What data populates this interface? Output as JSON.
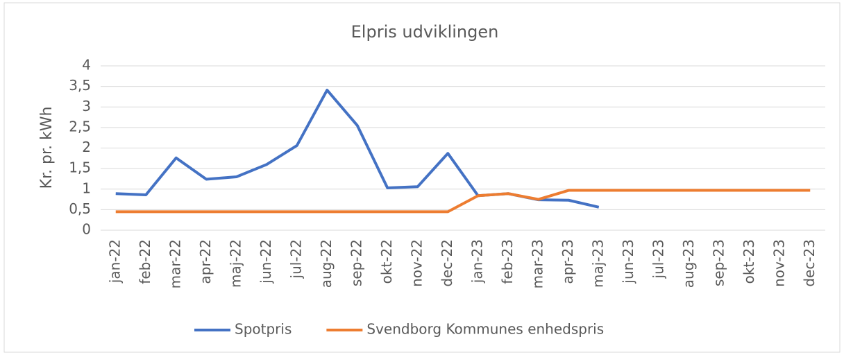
{
  "chart_data": {
    "type": "line",
    "title": "Elpris udviklingen",
    "y_label": "Kr. pr. kWh",
    "categories": [
      "jan-22",
      "feb-22",
      "mar-22",
      "apr-22",
      "maj-22",
      "jun-22",
      "jul-22",
      "aug-22",
      "sep-22",
      "okt-22",
      "nov-22",
      "dec-22",
      "jan-23",
      "feb-23",
      "mar-23",
      "apr-23",
      "maj-23",
      "jun-23",
      "jul-23",
      "aug-23",
      "sep-23",
      "okt-23",
      "nov-23",
      "dec-23"
    ],
    "series": [
      {
        "name": "Spotpris",
        "color": "#4472c4",
        "values": [
          0.89,
          0.86,
          1.76,
          1.24,
          1.3,
          1.6,
          2.06,
          3.41,
          2.55,
          1.03,
          1.06,
          1.87,
          0.84,
          0.89,
          0.74,
          0.73,
          0.56,
          null,
          null,
          null,
          null,
          null,
          null,
          null
        ]
      },
      {
        "name": "Svendborg Kommunes enhedspris",
        "color": "#ed7d31",
        "values": [
          0.45,
          0.45,
          0.45,
          0.45,
          0.45,
          0.45,
          0.45,
          0.45,
          0.45,
          0.45,
          0.45,
          0.45,
          0.84,
          0.89,
          0.75,
          0.97,
          0.97,
          0.97,
          0.97,
          0.97,
          0.97,
          0.97,
          0.97,
          0.97
        ]
      }
    ],
    "ylim": [
      0,
      4
    ],
    "yticks": [
      0,
      {
        "value": 0.5,
        "label": "0,5"
      },
      1,
      {
        "value": 1.5,
        "label": "1,5"
      },
      2,
      {
        "value": 2.5,
        "label": "2,5"
      },
      3,
      {
        "value": 3.5,
        "label": "3,5"
      },
      4
    ],
    "grid": true,
    "legend": "bottom"
  }
}
